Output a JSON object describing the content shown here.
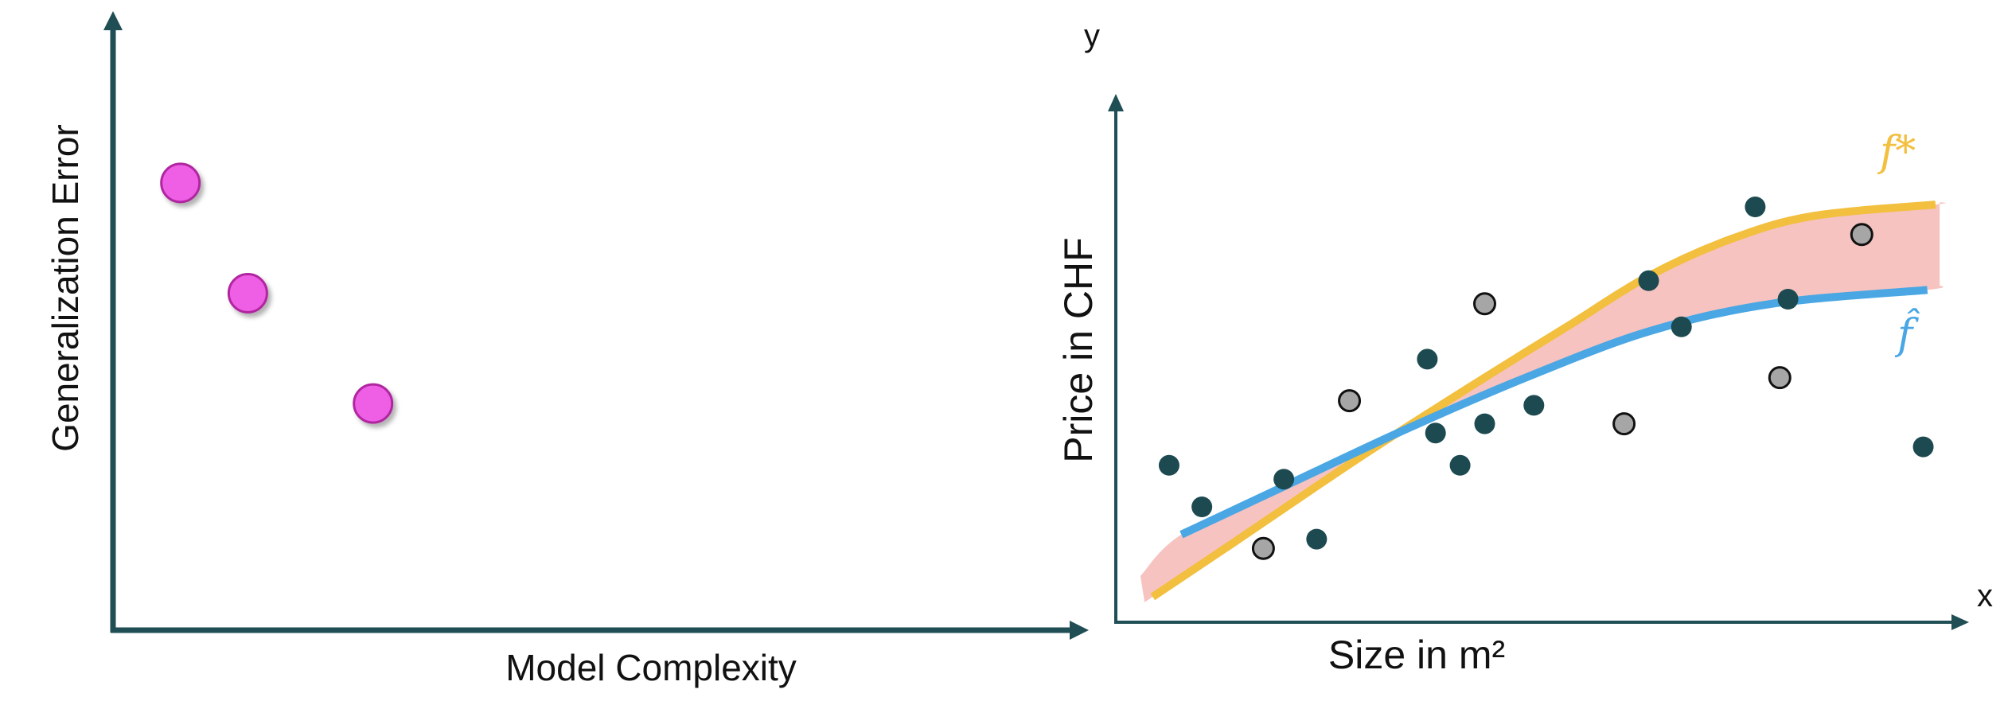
{
  "colors": {
    "axis_left": "#1f4e55",
    "axis_right": "#1f4e55",
    "error_marker": "#ee5ee6",
    "error_marker_edge": "#b0269f",
    "point_dark": "#1c4a50",
    "point_gray": "#a6a6a6",
    "true_fn": "#f2bf3e",
    "est_fn": "#4aa7e4",
    "gap_band": "#f4b8b5"
  },
  "chart_data": [
    {
      "type": "scatter",
      "title": "",
      "xlabel": "Model Complexity",
      "ylabel": "Generalization Error",
      "xlim": [
        0,
        10
      ],
      "ylim": [
        0,
        10
      ],
      "grid": false,
      "series": [
        {
          "points": [
            [
              0.7,
              7.3
            ],
            [
              1.4,
              5.5
            ],
            [
              2.7,
              3.7
            ]
          ]
        }
      ]
    },
    {
      "type": "scatter",
      "title": "",
      "xlabel": "Size in m²",
      "ylabel": "Price in CHF",
      "x_axis_letter": "x",
      "y_axis_letter": "y",
      "xlim": [
        0,
        10
      ],
      "ylim": [
        0,
        10
      ],
      "grid": false,
      "series": [
        {
          "kind": "dark",
          "points": [
            [
              0.65,
              3.4
            ],
            [
              1.05,
              2.5
            ],
            [
              2.05,
              3.1
            ],
            [
              2.45,
              1.8
            ],
            [
              3.8,
              5.7
            ],
            [
              3.9,
              4.1
            ],
            [
              4.2,
              3.4
            ],
            [
              4.5,
              4.3
            ],
            [
              5.1,
              4.7
            ],
            [
              6.5,
              7.4
            ],
            [
              6.9,
              6.4
            ],
            [
              7.8,
              9.0
            ],
            [
              8.2,
              7.0
            ],
            [
              9.85,
              3.8
            ]
          ]
        },
        {
          "kind": "gray",
          "points": [
            [
              1.8,
              1.6
            ],
            [
              2.85,
              4.8
            ],
            [
              4.5,
              6.9
            ],
            [
              6.2,
              4.3
            ],
            [
              8.1,
              5.3
            ],
            [
              9.1,
              8.4
            ]
          ]
        },
        {
          "name": "f*",
          "kind": "line",
          "points": [
            [
              0.45,
              0.55
            ],
            [
              1.5,
              1.8
            ],
            [
              3,
              3.6
            ],
            [
              4.5,
              5.3
            ],
            [
              5.5,
              6.4
            ],
            [
              6.5,
              7.5
            ],
            [
              7.5,
              8.3
            ],
            [
              8.5,
              8.8
            ],
            [
              10.0,
              9.05
            ]
          ]
        },
        {
          "name": "f̂",
          "kind": "line",
          "points": [
            [
              0.8,
              1.9
            ],
            [
              2,
              2.9
            ],
            [
              3.5,
              4.15
            ],
            [
              5,
              5.3
            ],
            [
              6.5,
              6.3
            ],
            [
              8,
              6.9
            ],
            [
              9.9,
              7.2
            ]
          ]
        }
      ]
    }
  ]
}
